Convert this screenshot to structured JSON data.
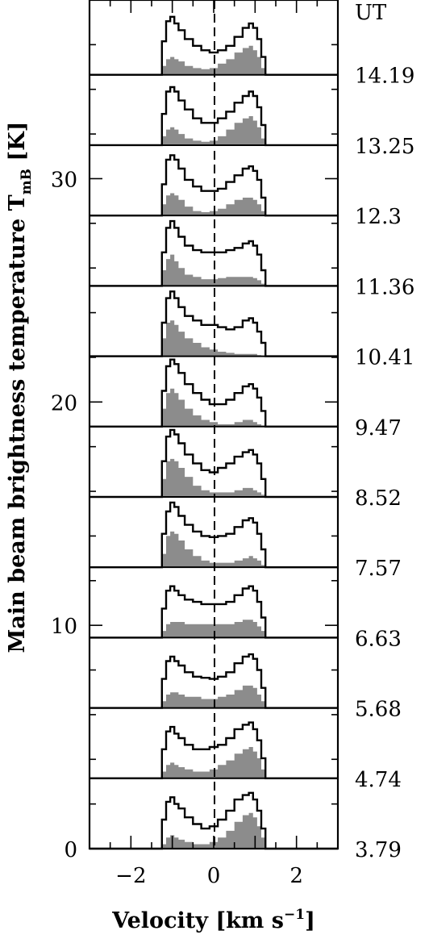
{
  "chart_data": {
    "type": "area",
    "xlabel": "Velocity [km s",
    "xlabel_sup": "−1",
    "xlabel_close": "]",
    "ylabel": "Main beam brightness temperature T",
    "ylabel_sub": "mB",
    "ylabel_unit": " [K]",
    "xlim": [
      -3,
      3
    ],
    "ylim": [
      0,
      38
    ],
    "x_ticks": [
      -2,
      0,
      2
    ],
    "x_tick_labels": [
      "−2",
      "0",
      "2"
    ],
    "y_ticks": [
      0,
      10,
      20,
      30
    ],
    "y_tick_labels": [
      "0",
      "10",
      "20",
      "30"
    ],
    "ut_header": "UT",
    "panel_step": 3.15,
    "ut_times": [
      "3.79",
      "4.74",
      "5.68",
      "6.63",
      "7.57",
      "8.52",
      "9.47",
      "10.41",
      "11.36",
      "12.3",
      "13.25",
      "14.19"
    ],
    "velocity_grid": [
      -1.3,
      -1.2,
      -1.1,
      -1.0,
      -0.9,
      -0.8,
      -0.6,
      -0.4,
      -0.2,
      0,
      0.2,
      0.4,
      0.6,
      0.8,
      0.9,
      1.0,
      1.1,
      1.2,
      1.3
    ],
    "series": [
      {
        "ut": "3.79",
        "black": [
          0,
          1.3,
          2.1,
          2.3,
          2.0,
          1.8,
          1.4,
          1.1,
          0.9,
          1.0,
          1.3,
          1.7,
          2.2,
          2.4,
          2.5,
          2.2,
          1.7,
          0.9,
          0
        ],
        "gray": [
          0,
          0.2,
          0.5,
          0.6,
          0.5,
          0.4,
          0.3,
          0.2,
          0.2,
          0.3,
          0.5,
          0.8,
          1.2,
          1.5,
          1.6,
          1.4,
          1.0,
          0.5,
          0
        ]
      },
      {
        "ut": "4.74",
        "black": [
          0,
          1.3,
          2.1,
          2.3,
          2.0,
          1.8,
          1.5,
          1.3,
          1.3,
          1.4,
          1.5,
          1.8,
          2.2,
          2.4,
          2.5,
          2.2,
          1.7,
          0.9,
          0
        ],
        "gray": [
          0,
          0.3,
          0.6,
          0.7,
          0.6,
          0.5,
          0.4,
          0.3,
          0.3,
          0.4,
          0.6,
          0.8,
          1.1,
          1.3,
          1.4,
          1.2,
          0.9,
          0.4,
          0
        ]
      },
      {
        "ut": "5.68",
        "black": [
          0,
          1.3,
          2.1,
          2.3,
          2.1,
          1.9,
          1.6,
          1.4,
          1.35,
          1.3,
          1.4,
          1.6,
          2.0,
          2.3,
          2.4,
          2.2,
          1.7,
          0.9,
          0
        ],
        "gray": [
          0,
          0.3,
          0.6,
          0.7,
          0.7,
          0.6,
          0.5,
          0.5,
          0.4,
          0.4,
          0.5,
          0.6,
          0.8,
          1.0,
          1.0,
          0.9,
          0.6,
          0.3,
          0
        ]
      },
      {
        "ut": "6.63",
        "black": [
          0,
          1.3,
          2.1,
          2.3,
          2.1,
          1.9,
          1.7,
          1.6,
          1.5,
          1.5,
          1.5,
          1.6,
          1.9,
          2.2,
          2.3,
          2.1,
          1.6,
          0.9,
          0
        ],
        "gray": [
          0,
          0.3,
          0.6,
          0.7,
          0.7,
          0.7,
          0.6,
          0.6,
          0.6,
          0.6,
          0.6,
          0.6,
          0.7,
          0.8,
          0.8,
          0.7,
          0.5,
          0.3,
          0
        ]
      },
      {
        "ut": "7.57",
        "black": [
          0,
          1.5,
          2.5,
          2.9,
          2.7,
          2.3,
          1.9,
          1.6,
          1.4,
          1.35,
          1.4,
          1.5,
          1.8,
          2.1,
          2.2,
          2.0,
          1.5,
          0.8,
          0
        ],
        "gray": [
          0,
          0.6,
          1.4,
          1.6,
          1.5,
          1.2,
          0.8,
          0.5,
          0.3,
          0.2,
          0.2,
          0.2,
          0.3,
          0.4,
          0.5,
          0.4,
          0.3,
          0.1,
          0
        ]
      },
      {
        "ut": "8.52",
        "black": [
          0,
          1.6,
          2.7,
          3.0,
          2.8,
          2.4,
          1.9,
          1.5,
          1.2,
          1.1,
          1.3,
          1.5,
          1.8,
          2.0,
          2.1,
          1.9,
          1.5,
          0.8,
          0
        ],
        "gray": [
          0,
          0.8,
          1.6,
          1.7,
          1.6,
          1.3,
          0.9,
          0.5,
          0.3,
          0.2,
          0.2,
          0.2,
          0.3,
          0.4,
          0.4,
          0.3,
          0.2,
          0.1,
          0
        ]
      },
      {
        "ut": "9.47",
        "black": [
          0,
          1.6,
          2.7,
          3.0,
          2.8,
          2.4,
          1.9,
          1.5,
          1.2,
          1.0,
          1.0,
          1.2,
          1.5,
          1.8,
          1.9,
          1.7,
          1.3,
          0.7,
          0
        ],
        "gray": [
          0,
          0.8,
          1.5,
          1.7,
          1.5,
          1.2,
          0.8,
          0.5,
          0.3,
          0.2,
          0.1,
          0.1,
          0.2,
          0.3,
          0.3,
          0.2,
          0.1,
          0.05,
          0
        ]
      },
      {
        "ut": "10.41",
        "black": [
          0,
          1.5,
          2.6,
          2.9,
          2.6,
          2.2,
          1.8,
          1.6,
          1.4,
          1.4,
          1.3,
          1.2,
          1.3,
          1.6,
          1.7,
          1.5,
          1.1,
          0.6,
          0
        ],
        "gray": [
          0,
          0.8,
          1.5,
          1.6,
          1.4,
          1.1,
          0.8,
          0.6,
          0.4,
          0.3,
          0.2,
          0.15,
          0.1,
          0.1,
          0.1,
          0.1,
          0.05,
          0.02,
          0
        ]
      },
      {
        "ut": "11.36",
        "black": [
          0,
          1.5,
          2.6,
          2.9,
          2.6,
          2.2,
          1.8,
          1.6,
          1.5,
          1.5,
          1.5,
          1.6,
          1.7,
          1.9,
          2.0,
          1.8,
          1.4,
          0.7,
          0
        ],
        "gray": [
          0,
          0.7,
          1.2,
          1.4,
          1.1,
          0.8,
          0.5,
          0.4,
          0.3,
          0.3,
          0.35,
          0.4,
          0.4,
          0.4,
          0.4,
          0.35,
          0.25,
          0.1,
          0
        ]
      },
      {
        "ut": "12.3",
        "black": [
          0,
          1.4,
          2.5,
          2.7,
          2.5,
          2.1,
          1.6,
          1.3,
          1.1,
          1.1,
          1.2,
          1.5,
          1.8,
          2.1,
          2.2,
          2.0,
          1.6,
          0.8,
          0
        ],
        "gray": [
          0,
          0.5,
          0.9,
          1.0,
          0.9,
          0.7,
          0.4,
          0.2,
          0.15,
          0.2,
          0.3,
          0.5,
          0.7,
          0.8,
          0.8,
          0.7,
          0.5,
          0.2,
          0
        ]
      },
      {
        "ut": "13.25",
        "black": [
          0,
          1.4,
          2.4,
          2.6,
          2.4,
          2.0,
          1.6,
          1.2,
          1.0,
          1.0,
          1.2,
          1.5,
          1.9,
          2.2,
          2.4,
          2.2,
          1.7,
          0.9,
          0
        ],
        "gray": [
          0,
          0.4,
          0.7,
          0.8,
          0.7,
          0.5,
          0.3,
          0.2,
          0.15,
          0.2,
          0.4,
          0.7,
          1.0,
          1.2,
          1.3,
          1.1,
          0.8,
          0.3,
          0
        ]
      },
      {
        "ut": "14.19",
        "black": [
          0,
          1.5,
          2.4,
          2.6,
          2.3,
          2.0,
          1.6,
          1.3,
          1.1,
          1.0,
          1.1,
          1.3,
          1.7,
          2.1,
          2.3,
          2.1,
          1.6,
          0.8,
          0
        ],
        "gray": [
          0,
          0.4,
          0.7,
          0.8,
          0.7,
          0.6,
          0.4,
          0.3,
          0.25,
          0.3,
          0.5,
          0.7,
          1.0,
          1.2,
          1.3,
          1.1,
          0.8,
          0.3,
          0
        ]
      }
    ]
  }
}
